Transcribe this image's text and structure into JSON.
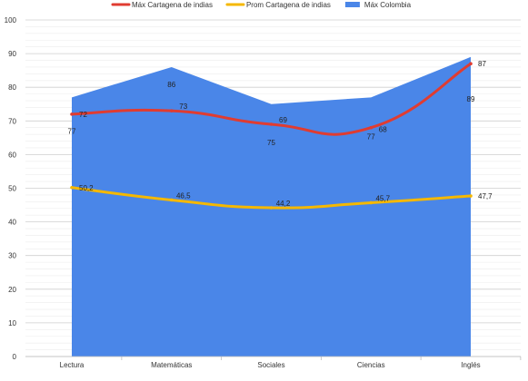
{
  "chart_data": {
    "type": "area",
    "categories": [
      "Lectura",
      "Matemáticas",
      "Sociales",
      "Ciencias",
      "Inglés"
    ],
    "ylim": [
      0,
      100
    ],
    "yticks": [
      0,
      10,
      20,
      30,
      40,
      50,
      60,
      70,
      80,
      90,
      100
    ],
    "grid": true,
    "legend_position": "top",
    "series": [
      {
        "name": "Máx Cartagena de indias",
        "kind": "line",
        "color": "#e03c31",
        "values": [
          72,
          73,
          69,
          68,
          87
        ],
        "labels": [
          "72",
          "73",
          "69",
          "68",
          "87"
        ]
      },
      {
        "name": "Prom Cartagena de indias",
        "kind": "line",
        "color": "#f5b800",
        "values": [
          50.2,
          46.5,
          44.2,
          45.7,
          47.7
        ],
        "labels": [
          "50,2",
          "46,5",
          "44,2",
          "45,7",
          "47,7"
        ]
      },
      {
        "name": "Máx Colombia",
        "kind": "area",
        "color": "#4a86e8",
        "values": [
          77,
          86,
          75,
          77,
          89
        ],
        "labels": [
          "77",
          "86",
          "75",
          "77",
          "89"
        ]
      }
    ]
  }
}
